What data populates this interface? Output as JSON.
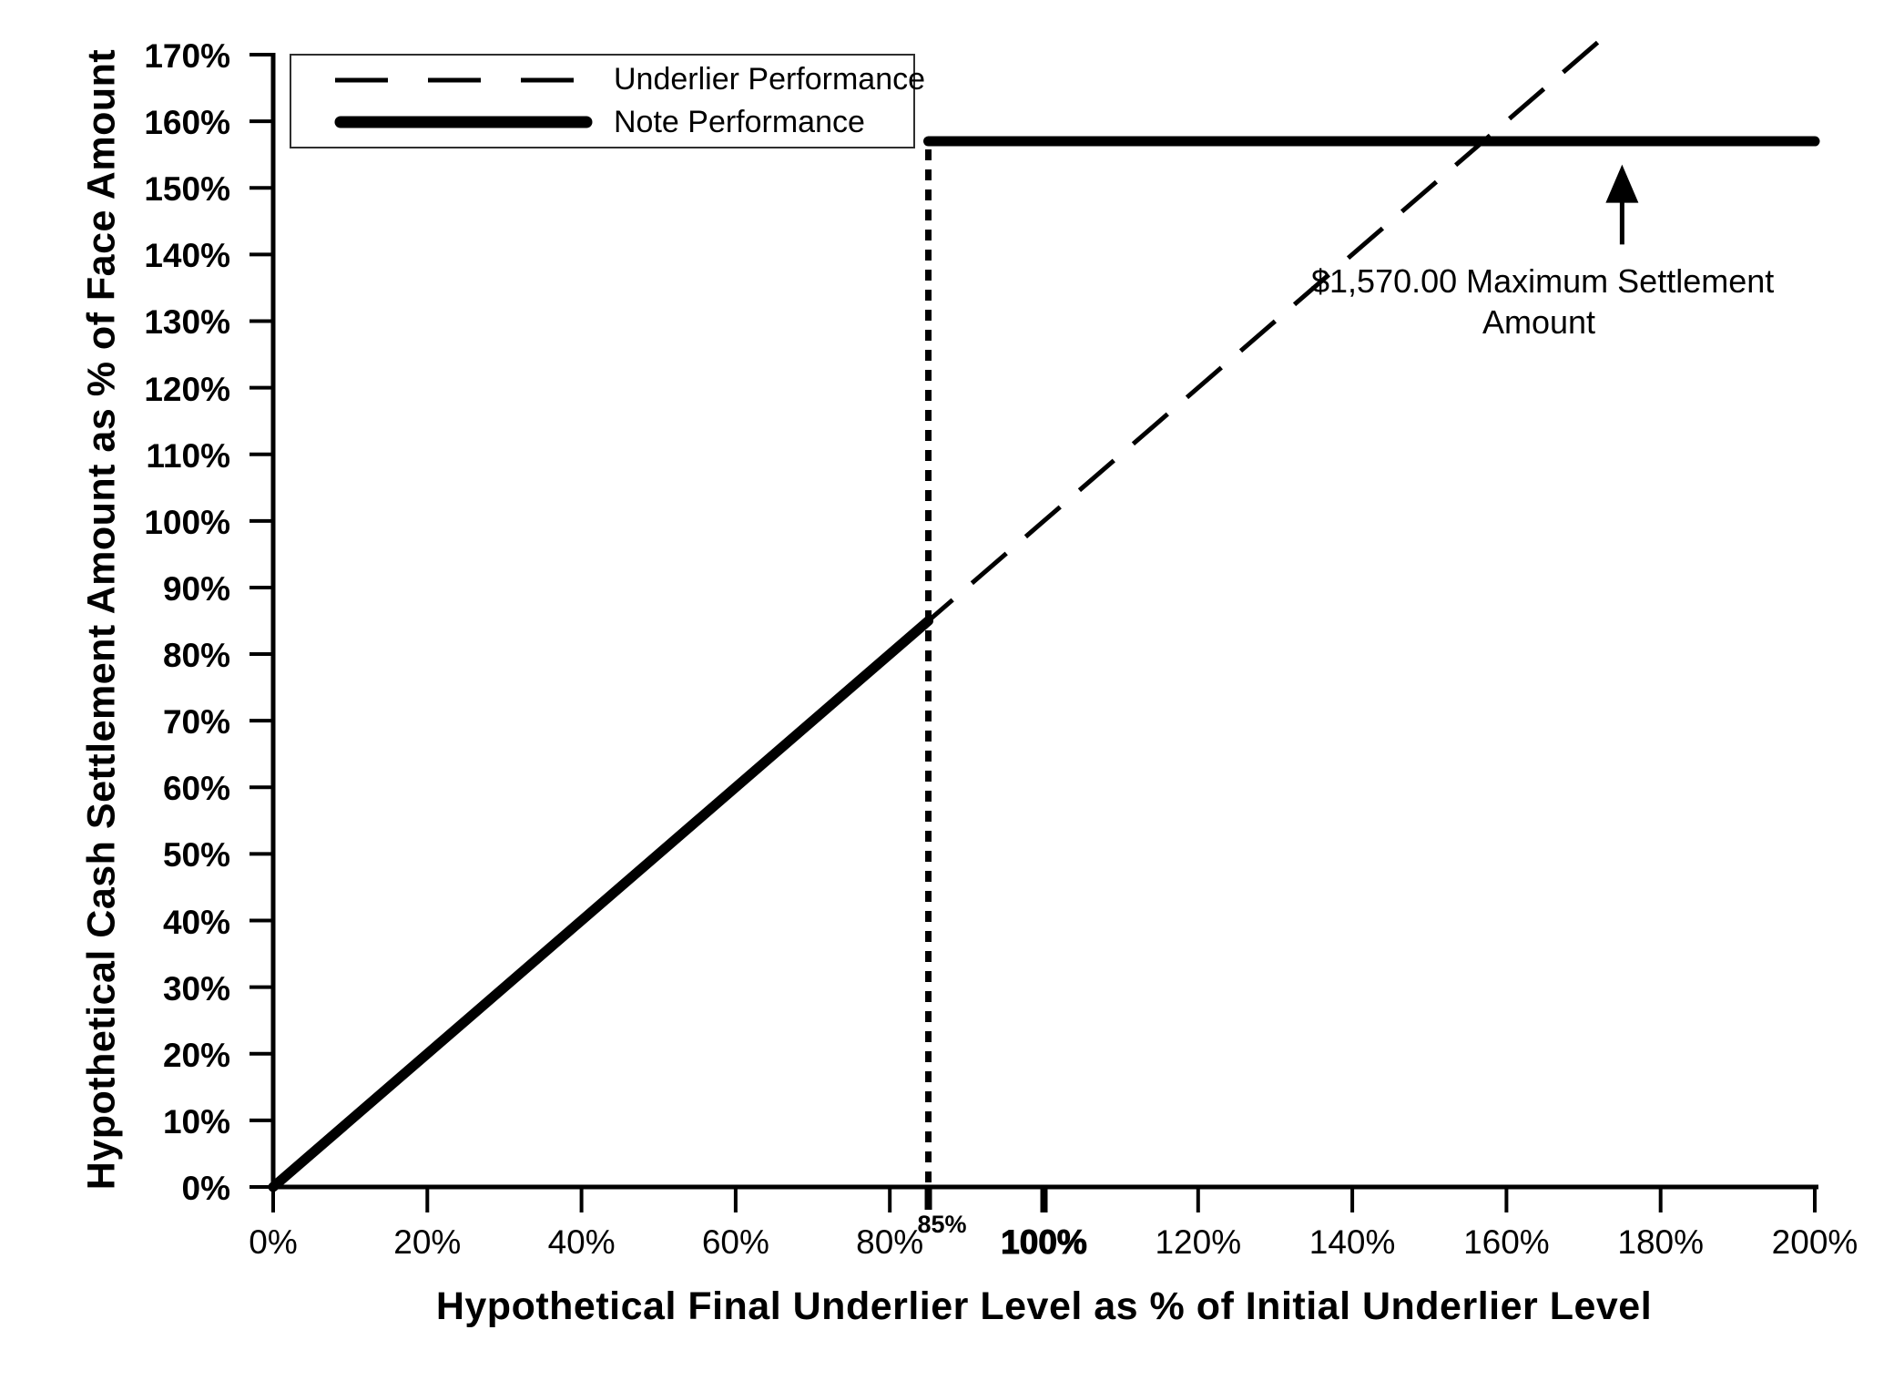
{
  "chart_data": {
    "type": "line",
    "title": "",
    "xlabel": "Hypothetical Final Underlier Level as % of Initial Underlier Level",
    "ylabel": "Hypothetical Cash Settlement Amount as % of Face Amount",
    "xlim": [
      0,
      200
    ],
    "ylim": [
      0,
      170
    ],
    "grid": false,
    "x_ticks": [
      {
        "value": 0,
        "label": "0%"
      },
      {
        "value": 20,
        "label": "20%"
      },
      {
        "value": 40,
        "label": "40%"
      },
      {
        "value": 60,
        "label": "60%"
      },
      {
        "value": 80,
        "label": "80%"
      },
      {
        "value": 100,
        "label": "100%",
        "bold": true
      },
      {
        "value": 120,
        "label": "120%"
      },
      {
        "value": 140,
        "label": "140%"
      },
      {
        "value": 160,
        "label": "160%"
      },
      {
        "value": 180,
        "label": "180%"
      },
      {
        "value": 200,
        "label": "200%"
      }
    ],
    "x_extra_tick": {
      "value": 85,
      "label": "85%",
      "bold": true
    },
    "y_ticks": [
      {
        "value": 0,
        "label": "0%"
      },
      {
        "value": 10,
        "label": "10%"
      },
      {
        "value": 20,
        "label": "20%"
      },
      {
        "value": 30,
        "label": "30%"
      },
      {
        "value": 40,
        "label": "40%"
      },
      {
        "value": 50,
        "label": "50%"
      },
      {
        "value": 60,
        "label": "60%"
      },
      {
        "value": 70,
        "label": "70%"
      },
      {
        "value": 80,
        "label": "80%"
      },
      {
        "value": 90,
        "label": "90%"
      },
      {
        "value": 100,
        "label": "100%"
      },
      {
        "value": 110,
        "label": "110%"
      },
      {
        "value": 120,
        "label": "120%"
      },
      {
        "value": 130,
        "label": "130%"
      },
      {
        "value": 140,
        "label": "140%"
      },
      {
        "value": 150,
        "label": "150%"
      },
      {
        "value": 160,
        "label": "160%"
      },
      {
        "value": 170,
        "label": "170%"
      }
    ],
    "legend": {
      "position": "top-left",
      "entries": [
        {
          "name": "Underlier Performance",
          "style": "dashed"
        },
        {
          "name": "Note Performance",
          "style": "solid-thick"
        }
      ]
    },
    "series": [
      {
        "name": "Underlier Performance",
        "style": "dashed",
        "points": [
          [
            0,
            0
          ],
          [
            172,
            172
          ]
        ]
      },
      {
        "name": "Note Performance",
        "style": "solid-thick",
        "segments": [
          [
            [
              0,
              0
            ],
            [
              85,
              85
            ]
          ],
          [
            [
              85,
              157
            ],
            [
              200,
              157
            ]
          ]
        ]
      }
    ],
    "threshold_line": {
      "style": "dotted-vertical",
      "x": 85,
      "y_from": 0,
      "y_to": 157
    },
    "max_settlement": {
      "label_line1": "$1,570.00 Maximum Settlement",
      "label_line2": "Amount",
      "level_pct": 157,
      "arrow": {
        "x": 175,
        "y_tip": 153.5,
        "y_tail": 141.5
      }
    }
  },
  "colors": {
    "line": "#000000",
    "background": "#ffffff",
    "legend_border": "#2e2e2e"
  }
}
